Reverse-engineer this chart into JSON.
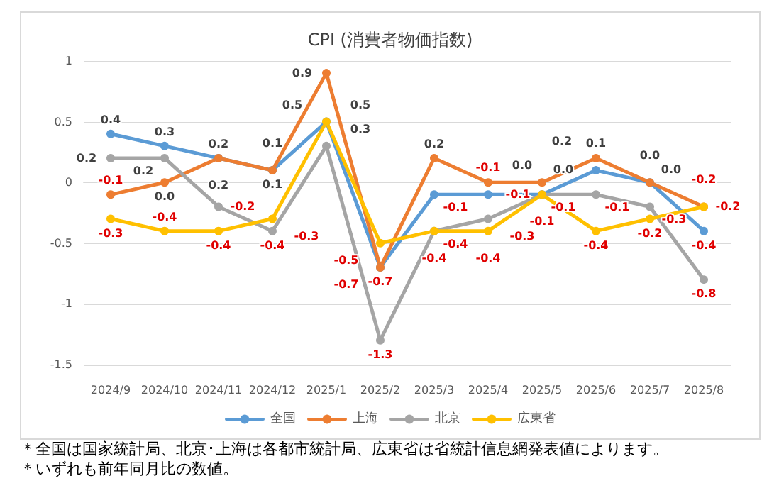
{
  "chart_data": {
    "type": "line",
    "title": "CPI (消費者物価指数)",
    "categories": [
      "2024/9",
      "2024/10",
      "2024/11",
      "2024/12",
      "2025/1",
      "2025/2",
      "2025/3",
      "2025/4",
      "2025/5",
      "2025/6",
      "2025/7",
      "2025/8"
    ],
    "series": [
      {
        "name": "全国",
        "color": "#5b9bd5",
        "values": [
          0.4,
          0.3,
          0.2,
          0.1,
          0.5,
          -0.7,
          -0.1,
          -0.1,
          -0.1,
          0.1,
          0.0,
          -0.4
        ],
        "value_labels": [
          "0.4",
          "0.3",
          "0.2",
          "0.1",
          "0.5",
          "-0.7",
          "-0.1",
          "-0.1",
          "-0.1",
          "0.1",
          "0.0",
          "-0.4"
        ]
      },
      {
        "name": "上海",
        "color": "#ed7d31",
        "values": [
          -0.1,
          0.0,
          0.2,
          0.1,
          0.9,
          -0.7,
          0.2,
          0.0,
          0.0,
          0.2,
          0.0,
          -0.2
        ],
        "value_labels": [
          "-0.1",
          "0.0",
          "0.2",
          "0.1",
          "0.9",
          "-0.7",
          "0.2",
          "0.0",
          "0.0",
          "0.2",
          "0.0",
          "-0.2"
        ]
      },
      {
        "name": "北京",
        "color": "#a5a5a5",
        "values": [
          0.2,
          0.2,
          -0.2,
          -0.4,
          0.3,
          -1.3,
          -0.4,
          -0.3,
          -0.1,
          -0.1,
          -0.2,
          -0.8
        ],
        "value_labels": [
          "0.2",
          "0.2",
          "-0.2",
          "-0.4",
          "0.3",
          "-1.3",
          "-0.4",
          "-0.3",
          "-0.1",
          "-0.1",
          "-0.2",
          "-0.8"
        ]
      },
      {
        "name": "広東省",
        "color": "#ffc000",
        "values": [
          -0.3,
          -0.4,
          -0.4,
          -0.3,
          0.5,
          -0.5,
          -0.4,
          -0.4,
          -0.1,
          -0.4,
          -0.3,
          -0.2
        ],
        "value_labels": [
          "-0.3",
          "-0.4",
          "-0.4",
          "-0.3",
          "0.5",
          "-0.5",
          "-0.4",
          "-0.4",
          "-0.1",
          "-0.4",
          "-0.3",
          "-0.2"
        ]
      }
    ],
    "ylim": [
      -1.5,
      1
    ],
    "yticks": [
      -1.5,
      -1,
      -0.5,
      0,
      0.5,
      1
    ],
    "grid": "y",
    "legend": "bottom",
    "marker": "circle",
    "line_style": "solid",
    "annotations": [
      "＊全国は国家統計局、北京･上海は各都市統計局、広東省は省統計信息網発表値によります。",
      "＊いずれも前年同月比の数値。"
    ]
  }
}
